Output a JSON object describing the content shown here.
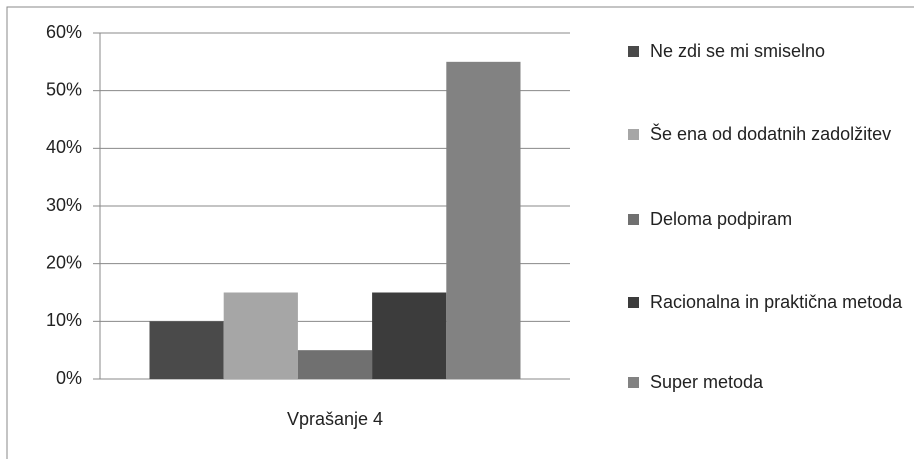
{
  "chart_data": {
    "type": "bar",
    "categories": [
      "Vprašanje 4"
    ],
    "series": [
      {
        "name": "Ne zdi se mi smiselno",
        "color": "#4a4a4a",
        "values": [
          10
        ]
      },
      {
        "name": "Še ena od dodatnih zadolžitev",
        "color": "#a6a6a6",
        "values": [
          15
        ]
      },
      {
        "name": "Deloma podpiram",
        "color": "#707070",
        "values": [
          5
        ]
      },
      {
        "name": "Racionalna in praktična metoda",
        "color": "#3c3c3c",
        "values": [
          15
        ]
      },
      {
        "name": "Super metoda",
        "color": "#828282",
        "values": [
          55
        ]
      }
    ],
    "ylim": [
      0,
      60
    ],
    "yticks": [
      {
        "value": 0,
        "label": "0%"
      },
      {
        "value": 10,
        "label": "10%"
      },
      {
        "value": 20,
        "label": "20%"
      },
      {
        "value": 30,
        "label": "30%"
      },
      {
        "value": 40,
        "label": "40%"
      },
      {
        "value": 50,
        "label": "50%"
      },
      {
        "value": 60,
        "label": "60%"
      }
    ],
    "grid": true,
    "legend": "right"
  }
}
